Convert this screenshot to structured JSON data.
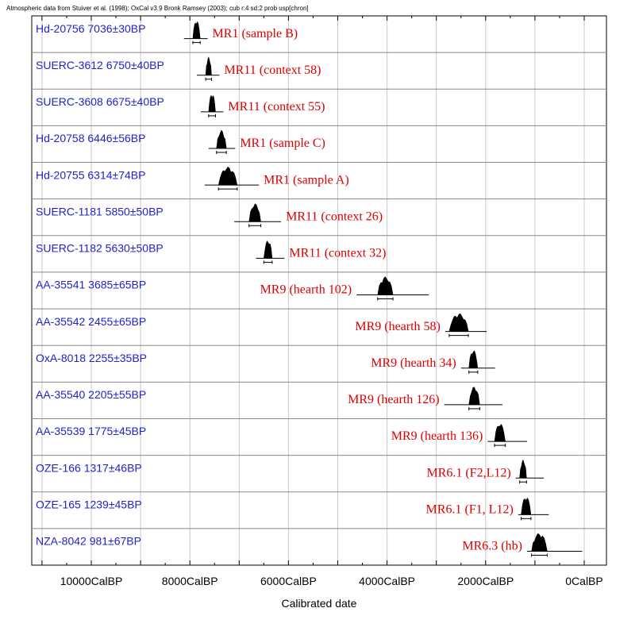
{
  "header": {
    "text": "Atmospheric data from Stuiver et al. (1998); OxCal v3.9 Bronk Ramsey (2003); cub r:4 sd:2 prob usp[chron]"
  },
  "chart_data": {
    "type": "table",
    "xlabel": "Calibrated date",
    "xlim": [
      11500,
      -200
    ],
    "ticks": [
      {
        "value": 10000,
        "label": "10000CalBP"
      },
      {
        "value": 8000,
        "label": "8000CalBP"
      },
      {
        "value": 6000,
        "label": "6000CalBP"
      },
      {
        "value": 4000,
        "label": "4000CalBP"
      },
      {
        "value": 2000,
        "label": "2000CalBP"
      },
      {
        "value": 0,
        "label": "0CalBP"
      }
    ],
    "grid": true,
    "rows": [
      {
        "lab": "Hd-20756  7036±30BP",
        "site": "MR1 (sample B)",
        "site_side": "right",
        "cal_from": 7940,
        "cal_to": 7790,
        "line_from": 8120,
        "line_to": 7640
      },
      {
        "lab": "SUERC-3612  6750±40BP",
        "site": "MR11 (context 58)",
        "site_side": "right",
        "cal_from": 7680,
        "cal_to": 7560,
        "line_from": 7860,
        "line_to": 7400
      },
      {
        "lab": "SUERC-3608  6675±40BP",
        "site": "MR11 (context 55)",
        "site_side": "right",
        "cal_from": 7620,
        "cal_to": 7480,
        "line_from": 7780,
        "line_to": 7320
      },
      {
        "lab": "Hd-20758  6446±56BP",
        "site": "MR1 (sample C)",
        "site_side": "right",
        "cal_from": 7460,
        "cal_to": 7260,
        "line_from": 7620,
        "line_to": 7080
      },
      {
        "lab": "Hd-20755  6314±74BP",
        "site": "MR1 (sample A)",
        "site_side": "right",
        "cal_from": 7420,
        "cal_to": 7040,
        "line_from": 7700,
        "line_to": 6600
      },
      {
        "lab": "SUERC-1181   5850±50BP",
        "site": "MR11 (context 26)",
        "site_side": "right",
        "cal_from": 6800,
        "cal_to": 6560,
        "line_from": 7100,
        "line_to": 6150
      },
      {
        "lab": "SUERC-1182  5630±50BP",
        "site": "MR11 (context 32)",
        "site_side": "right",
        "cal_from": 6500,
        "cal_to": 6330,
        "line_from": 6660,
        "line_to": 6080
      },
      {
        "lab": "AA-35541  3685±65BP",
        "site": "MR9 (hearth 102)",
        "site_side": "left",
        "cal_from": 4190,
        "cal_to": 3880,
        "line_from": 4620,
        "line_to": 3150
      },
      {
        "lab": "AA-35542  2455±65BP",
        "site": "MR9 (hearth 58)",
        "site_side": "left",
        "cal_from": 2740,
        "cal_to": 2350,
        "line_from": 2820,
        "line_to": 1980
      },
      {
        "lab": "OxA-8018  2255±35BP",
        "site": "MR9 (hearth 34)",
        "site_side": "left",
        "cal_from": 2340,
        "cal_to": 2160,
        "line_from": 2500,
        "line_to": 1810
      },
      {
        "lab": "AA-35540  2205±55BP",
        "site": "MR9 (hearth 126)",
        "site_side": "left",
        "cal_from": 2340,
        "cal_to": 2120,
        "line_from": 2840,
        "line_to": 1660
      },
      {
        "lab": "AA-35539  1775±45BP",
        "site": "MR9 (hearth 136)",
        "site_side": "left",
        "cal_from": 1820,
        "cal_to": 1600,
        "line_from": 1960,
        "line_to": 1160
      },
      {
        "lab": "OZE-166  1317±46BP",
        "site": "MR6.1 (F2,L12)",
        "site_side": "left",
        "cal_from": 1310,
        "cal_to": 1170,
        "line_from": 1390,
        "line_to": 820
      },
      {
        "lab": "OZE-165  1239±45BP",
        "site": "MR6.1 (F1, L12)",
        "site_side": "left",
        "cal_from": 1280,
        "cal_to": 1080,
        "line_from": 1340,
        "line_to": 720
      },
      {
        "lab": "NZA-8042  981±67BP",
        "site": "MR6.3 (hb)",
        "site_side": "left",
        "cal_from": 1070,
        "cal_to": 750,
        "line_from": 1160,
        "line_to": 40
      }
    ]
  }
}
